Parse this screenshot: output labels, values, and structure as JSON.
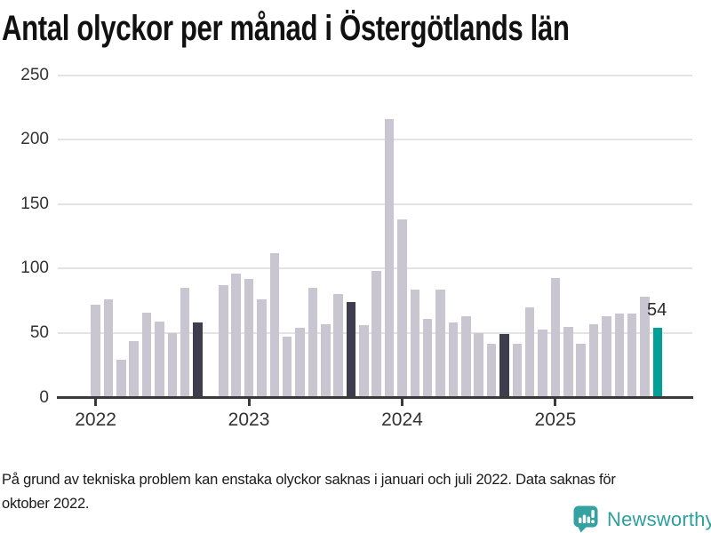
{
  "title": "Antal olyckor per månad i Östergötlands län",
  "chart_data": {
    "type": "bar",
    "title": "Antal olyckor per månad i Östergötlands län",
    "x_start": "2022-01",
    "x_end": "2025-09",
    "x_frequency": "monthly",
    "values": [
      72,
      76,
      29,
      44,
      66,
      59,
      50,
      85,
      58,
      null,
      87,
      96,
      92,
      76,
      112,
      47,
      54,
      85,
      57,
      80,
      74,
      56,
      98,
      216,
      138,
      84,
      61,
      84,
      58,
      63,
      50,
      42,
      49,
      42,
      70,
      53,
      93,
      55,
      42,
      57,
      63,
      65,
      65,
      78,
      54
    ],
    "missing_months": [
      "2022-10"
    ],
    "dark_highlight_indices": [
      8,
      20,
      32
    ],
    "teal_highlight_index": 44,
    "last_value_label": "54",
    "y_ticks": [
      0,
      50,
      100,
      150,
      200,
      250
    ],
    "ylim": [
      0,
      250
    ],
    "x_tick_labels": [
      "2022",
      "2023",
      "2024",
      "2025"
    ],
    "x_tick_month_indices": [
      0,
      12,
      24,
      36
    ],
    "grid": "horizontal",
    "legend": "none",
    "colors": {
      "bar_default": "#c9c6d2",
      "bar_dark": "#3e3d4d",
      "bar_teal": "#00a099",
      "gridline": "#e3e3e3",
      "axis": "#3a3a3a",
      "tick_label": "#333333"
    }
  },
  "footer": {
    "note": "På grund av tekniska problem kan enstaka olyckor saknas i januari och juli 2022. Data saknas för\noktober 2022."
  },
  "branding": {
    "name": "Newsworthy",
    "color": "#2d9fa0"
  }
}
